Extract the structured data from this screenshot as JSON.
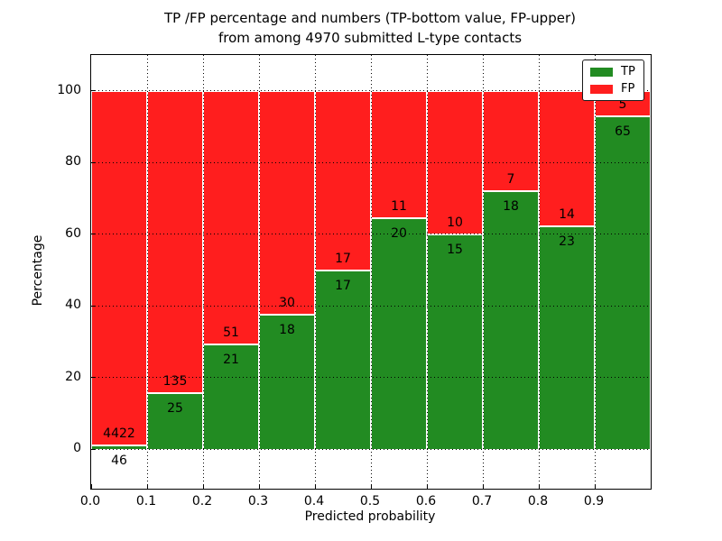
{
  "figure_bg": "#ffffff",
  "chart_data": {
    "type": "bar",
    "stacked": true,
    "normalized_to_percent": true,
    "title": "TP /FP percentage and numbers (TP-bottom value, FP-upper) from among 4970 submitted L-type contacts",
    "title_lines": [
      "TP /FP percentage and numbers (TP-bottom value, FP-upper)",
      "from among 4970 submitted L-type contacts"
    ],
    "xlabel": "Predicted probability",
    "ylabel": "Percentage",
    "bins": [
      "0.0-0.1",
      "0.1-0.2",
      "0.2-0.3",
      "0.3-0.4",
      "0.4-0.5",
      "0.5-0.6",
      "0.6-0.7",
      "0.7-0.8",
      "0.8-0.9",
      "0.9-1.0"
    ],
    "x_tick_labels": [
      "0.0",
      "0.1",
      "0.2",
      "0.3",
      "0.4",
      "0.5",
      "0.6",
      "0.7",
      "0.8",
      "0.9"
    ],
    "y_ticks": [
      0,
      20,
      40,
      60,
      80,
      100
    ],
    "xlim": [
      0.0,
      1.0
    ],
    "ylim": [
      -11,
      110
    ],
    "grid": true,
    "series": [
      {
        "name": "TP",
        "color": "#228B22",
        "values": [
          46,
          25,
          21,
          18,
          17,
          20,
          15,
          18,
          23,
          65
        ]
      },
      {
        "name": "FP",
        "color": "#FF1E1E",
        "values": [
          4422,
          135,
          51,
          30,
          17,
          11,
          10,
          7,
          14,
          5
        ]
      }
    ],
    "tp_percent_heights": [
      1.03,
      15.63,
      29.17,
      37.5,
      50.0,
      64.52,
      60.0,
      72.0,
      62.16,
      92.86
    ],
    "legend": {
      "position": "upper right",
      "entries": [
        {
          "label": "TP",
          "color": "#228B22"
        },
        {
          "label": "FP",
          "color": "#FF1E1E"
        }
      ]
    }
  }
}
